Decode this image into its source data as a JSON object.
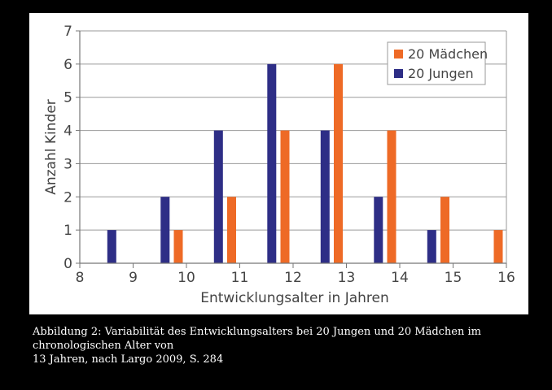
{
  "chart_data": {
    "type": "bar",
    "title": "",
    "xlabel": "Entwicklungsalter in Jahren",
    "ylabel": "Anzahl Kinder",
    "xlim": [
      8,
      16
    ],
    "ylim": [
      0,
      7
    ],
    "x_ticks": [
      "8",
      "9",
      "10",
      "11",
      "12",
      "13",
      "14",
      "15",
      "16"
    ],
    "y_ticks": [
      "0",
      "1",
      "2",
      "3",
      "4",
      "5",
      "6",
      "7"
    ],
    "grid": true,
    "legend_position": "top-right",
    "series": [
      {
        "name": "20 Mädchen",
        "color": "#ee6a26",
        "x": [
          10,
          11,
          12,
          13,
          14,
          15,
          16
        ],
        "values": [
          1,
          2,
          4,
          6,
          4,
          2,
          1
        ]
      },
      {
        "name": "20 Jungen",
        "color": "#2e2e86",
        "x": [
          9,
          10,
          11,
          12,
          13,
          14,
          15
        ],
        "values": [
          1,
          2,
          4,
          6,
          4,
          2,
          1
        ]
      }
    ]
  },
  "caption": {
    "line1": "Abbildung 2: Variabilität des Entwicklungsalters bei 20 Jungen und 20 Mädchen im",
    "line2": "chronologischen Alter von",
    "line3": "13 Jahren, nach Largo 2009, S. 284"
  }
}
